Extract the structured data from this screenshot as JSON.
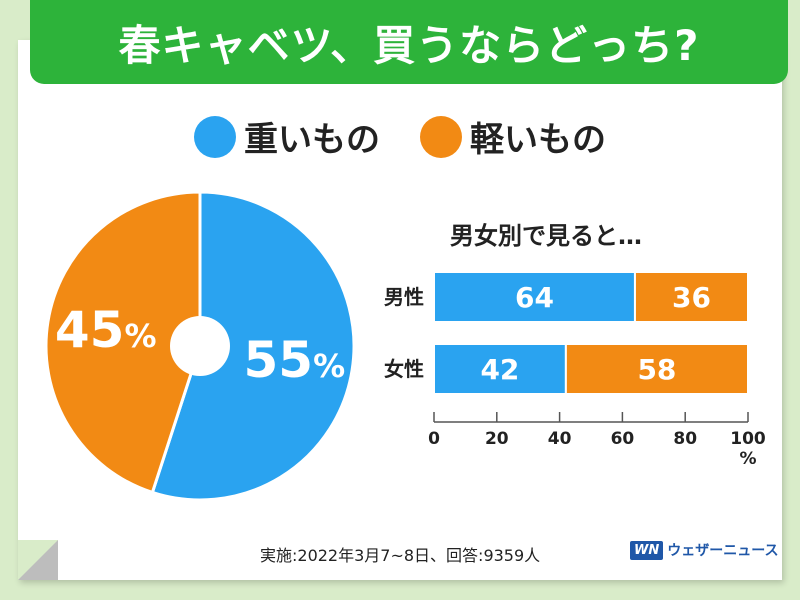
{
  "title": "春キャベツ、買うならどっち?",
  "legend": [
    {
      "label": "重いもの",
      "color": "#2aa3f0"
    },
    {
      "label": "軽いもの",
      "color": "#f28a14"
    }
  ],
  "chart_data": [
    {
      "type": "pie",
      "slices": [
        {
          "label": "重いもの",
          "value": 55,
          "display": "55",
          "color": "#2aa3f0"
        },
        {
          "label": "軽いもの",
          "value": 45,
          "display": "45",
          "color": "#f28a14"
        }
      ],
      "unit": "%"
    },
    {
      "type": "bar",
      "orientation": "horizontal",
      "stacked": true,
      "title": "男女別で見ると…",
      "categories": [
        "男性",
        "女性"
      ],
      "series": [
        {
          "name": "重いもの",
          "values": [
            64,
            42
          ],
          "color": "#2aa3f0"
        },
        {
          "name": "軽いもの",
          "values": [
            36,
            58
          ],
          "color": "#f28a14"
        }
      ],
      "xlim": [
        0,
        100
      ],
      "xticks": [
        "0",
        "20",
        "40",
        "60",
        "80",
        "100"
      ],
      "xunit": "%"
    }
  ],
  "footer": "実施:2022年3月7~8日、回答:9359人",
  "brand": {
    "logo": "WN",
    "name": "ウェザーニュース"
  }
}
